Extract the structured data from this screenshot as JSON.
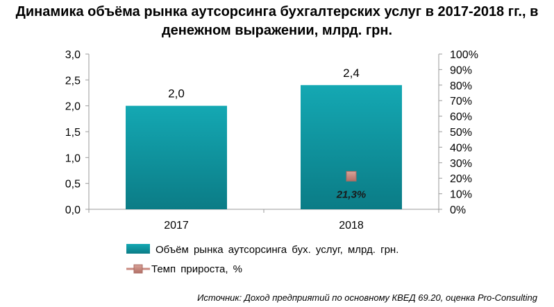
{
  "chart_data": {
    "type": "bar",
    "title": "Динамика объёма рынка аутсорсинга бухгалтерских услуг в 2017-2018 гг., в денежном выражении, млрд. грн.",
    "categories": [
      "2017",
      "2018"
    ],
    "series": [
      {
        "name": "Объём рынка аутсорсинга бух. услуг, млрд. грн.",
        "type": "bar",
        "axis": "left",
        "values": [
          2.0,
          2.4
        ],
        "data_labels": [
          "2,0",
          "2,4"
        ],
        "color": "#13a3ae"
      },
      {
        "name": "Темп прироста, %",
        "type": "line",
        "axis": "right",
        "values": [
          null,
          21.3
        ],
        "data_labels": [
          "",
          "21,3%"
        ],
        "color": "#c98a80"
      }
    ],
    "ylim": [
      0,
      3.0
    ],
    "yticks": [
      "0,0",
      "0,5",
      "1,0",
      "1,5",
      "2,0",
      "2,5",
      "3,0"
    ],
    "y2lim": [
      0,
      100
    ],
    "y2ticks": [
      "0%",
      "10%",
      "20%",
      "30%",
      "40%",
      "50%",
      "60%",
      "70%",
      "80%",
      "90%",
      "100%"
    ],
    "grid": false,
    "legend_position": "bottom"
  },
  "source": "Источник: Доход предприятий по основному КВЕД 69.20, оценка Pro-Consulting"
}
